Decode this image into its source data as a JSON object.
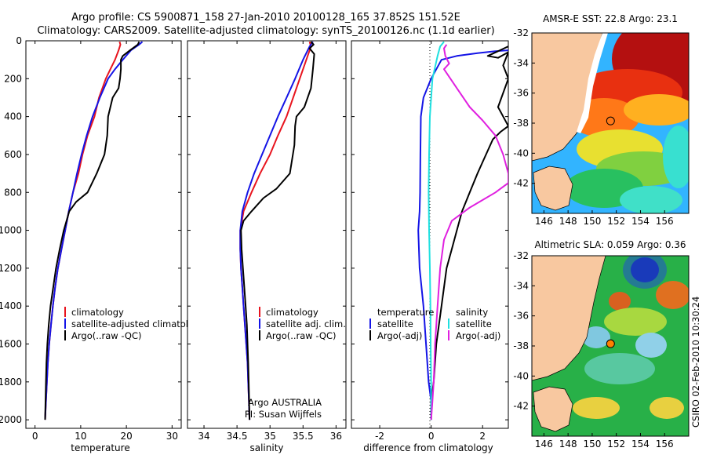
{
  "header": {
    "line1": "Argo profile: CS 5900871_158 27-Jan-2010 20100128_165 37.852S 151.52E",
    "line2": "Climatology: CARS2009. Satellite-adjusted climatology: synTS_20100126.nc (1.1d earlier)"
  },
  "side_label": "CSIRO 02-Feb-2010 10:30:24",
  "colors": {
    "climatology": "#e8141e",
    "satellite": "#1414e6",
    "argo": "#000000",
    "sal_satellite": "#20e0e0",
    "sal_argo": "#e020e0",
    "land": "#f8c8a0"
  },
  "chart_data": [
    {
      "type": "line",
      "xlabel": "temperature",
      "xlim": [
        -2,
        32
      ],
      "ylim": [
        2050,
        0
      ],
      "xticks": [
        0,
        10,
        20,
        30
      ],
      "yticks": [
        0,
        200,
        400,
        600,
        800,
        1000,
        1200,
        1400,
        1600,
        1800,
        2000
      ],
      "legend": {
        "placement": "bottom-right",
        "entries": [
          "climatology",
          "satellite-adjusted climatology",
          "Argo(..raw -QC)"
        ]
      },
      "series": [
        {
          "name": "climatology",
          "color": "#e8141e",
          "x": [
            18.5,
            18.7,
            18.3,
            17.5,
            16.5,
            15.5,
            14.0,
            13.0,
            11.5,
            10.4,
            9.5,
            8.3,
            7.4,
            6.6,
            5.8,
            5.0,
            4.4,
            3.9,
            3.5,
            3.1,
            2.8,
            2.6,
            2.4,
            2.2
          ],
          "y": [
            5,
            20,
            50,
            100,
            150,
            200,
            300,
            400,
            500,
            600,
            700,
            800,
            900,
            1000,
            1100,
            1200,
            1300,
            1400,
            1500,
            1600,
            1700,
            1800,
            1900,
            2000
          ]
        },
        {
          "name": "satellite-adjusted climatology",
          "color": "#1414e6",
          "x": [
            23.5,
            22.8,
            21.0,
            19.2,
            17.5,
            16.0,
            14.2,
            12.6,
            11.3,
            10.2,
            9.2,
            8.3,
            7.4,
            6.6,
            5.8,
            5.0,
            4.4,
            3.9,
            3.5,
            3.1,
            2.8,
            2.6,
            2.4,
            2.2
          ],
          "y": [
            5,
            20,
            50,
            100,
            150,
            200,
            300,
            400,
            500,
            600,
            700,
            800,
            900,
            1000,
            1100,
            1200,
            1300,
            1400,
            1500,
            1600,
            1700,
            1800,
            1900,
            2000
          ]
        },
        {
          "name": "Argo(..raw -QC)",
          "color": "#000000",
          "x": [
            22.8,
            22.5,
            20.8,
            19.2,
            18.8,
            18.8,
            18.6,
            18.3,
            17.0,
            16.5,
            16.0,
            15.8,
            15.2,
            13.5,
            11.5,
            9.0,
            7.5,
            6.3,
            5.4,
            4.6,
            4.0,
            3.4,
            3.0,
            2.7,
            2.5,
            2.4,
            2.2
          ],
          "y": [
            5,
            20,
            50,
            80,
            100,
            150,
            200,
            250,
            300,
            350,
            400,
            500,
            600,
            700,
            800,
            850,
            900,
            1000,
            1100,
            1200,
            1300,
            1400,
            1500,
            1600,
            1700,
            1800,
            2000
          ]
        }
      ]
    },
    {
      "type": "line",
      "xlabel": "salinity",
      "xlim": [
        33.75,
        36.15
      ],
      "ylim": [
        2050,
        0
      ],
      "xticks": [
        34,
        34.5,
        35,
        35.5,
        36
      ],
      "legend": {
        "placement": "bottom-right",
        "entries": [
          "climatology",
          "satellite adj. clim.",
          "Argo(..raw -QC)"
        ]
      },
      "annotation": [
        "Argo AUSTRALIA",
        "PI: Susan Wijffels"
      ],
      "series": [
        {
          "name": "climatology",
          "color": "#e8141e",
          "x": [
            35.6,
            35.62,
            35.55,
            35.45,
            35.35,
            35.25,
            35.12,
            35.0,
            34.85,
            34.72,
            34.6,
            34.55,
            34.55,
            34.56,
            34.58,
            34.6,
            34.62,
            34.64,
            34.66,
            34.67,
            34.68,
            34.69
          ],
          "y": [
            5,
            30,
            100,
            200,
            300,
            400,
            500,
            600,
            700,
            800,
            900,
            1000,
            1100,
            1200,
            1300,
            1400,
            1500,
            1600,
            1700,
            1800,
            1900,
            2000
          ]
        },
        {
          "name": "satellite adj. clim.",
          "color": "#1414e6",
          "x": [
            35.65,
            35.6,
            35.5,
            35.38,
            35.25,
            35.12,
            35.0,
            34.88,
            34.76,
            34.66,
            34.58,
            34.55,
            34.55,
            34.56,
            34.58,
            34.6,
            34.62,
            34.64,
            34.66,
            34.67,
            34.68,
            34.69
          ],
          "y": [
            5,
            30,
            100,
            200,
            300,
            400,
            500,
            600,
            700,
            800,
            900,
            1000,
            1100,
            1200,
            1300,
            1400,
            1500,
            1600,
            1700,
            1800,
            1900,
            2000
          ]
        },
        {
          "name": "Argo(..raw -QC)",
          "color": "#000000",
          "x": [
            35.62,
            35.66,
            35.6,
            35.67,
            35.65,
            35.62,
            35.52,
            35.4,
            35.38,
            35.37,
            35.3,
            35.1,
            34.9,
            34.72,
            34.6,
            34.56,
            34.57,
            34.59,
            34.61,
            34.63,
            34.65,
            34.67,
            34.68,
            34.69
          ],
          "y": [
            5,
            20,
            40,
            70,
            150,
            250,
            350,
            400,
            450,
            550,
            700,
            780,
            830,
            900,
            950,
            1000,
            1100,
            1200,
            1300,
            1400,
            1500,
            1700,
            1850,
            2000
          ]
        }
      ]
    },
    {
      "type": "line",
      "xlabel": "difference from climatology",
      "xlim": [
        -3.1,
        3.0
      ],
      "ylim": [
        2050,
        0
      ],
      "xticks": [
        -2,
        0,
        2
      ],
      "legend": {
        "placement": "bottom-right",
        "entries": [
          "temperature",
          "satellite",
          "Argo(-adj)",
          "salinity",
          "satellite",
          "Argo(-adj)"
        ]
      },
      "series": [
        {
          "name": "satellite",
          "color": "#1414e6",
          "x": [
            3.0,
            2.5,
            1.8,
            1.0,
            0.4,
            0.0,
            -0.3,
            -0.4,
            -0.42,
            -0.43,
            -0.45,
            -0.5,
            -0.45,
            -0.3,
            -0.2,
            -0.1,
            0.0,
            0.0
          ],
          "y": [
            50,
            55,
            65,
            80,
            100,
            200,
            300,
            400,
            600,
            800,
            900,
            1000,
            1200,
            1400,
            1600,
            1800,
            1900,
            2000
          ]
        },
        {
          "name": "Argo(-adj)",
          "color": "#000000",
          "x": [
            3.0,
            2.2,
            2.6,
            3.0,
            2.8,
            3.0,
            2.6,
            3.0,
            2.7,
            2.4,
            2.0,
            1.8,
            1.5,
            1.2,
            1.0,
            0.8,
            0.6,
            0.4,
            0.2,
            0.1,
            0.0,
            0.0
          ],
          "y": [
            30,
            80,
            90,
            60,
            130,
            200,
            350,
            450,
            480,
            520,
            640,
            700,
            800,
            900,
            1000,
            1100,
            1200,
            1400,
            1600,
            1800,
            1900,
            2000
          ]
        },
        {
          "name": "satellite",
          "color": "#20e0e0",
          "x": [
            0.5,
            0.35,
            0.25,
            0.05,
            -0.05,
            -0.08,
            -0.1,
            -0.08,
            -0.05,
            -0.03,
            -0.02,
            0.0,
            0.0
          ],
          "y": [
            5,
            30,
            80,
            200,
            400,
            600,
            800,
            1000,
            1200,
            1400,
            1600,
            1800,
            2000
          ]
        },
        {
          "name": "Argo(-adj)",
          "color": "#e020e0",
          "x": [
            0.6,
            0.5,
            0.55,
            0.7,
            0.5,
            1.0,
            1.5,
            2.0,
            2.5,
            2.8,
            3.0,
            3.0,
            2.5,
            1.5,
            0.8,
            0.5,
            0.35,
            0.25,
            0.15,
            0.1,
            0.05,
            0.0
          ],
          "y": [
            20,
            40,
            80,
            120,
            150,
            250,
            350,
            420,
            500,
            600,
            700,
            750,
            800,
            880,
            950,
            1050,
            1200,
            1400,
            1600,
            1800,
            1900,
            2000
          ]
        }
      ]
    },
    {
      "type": "heatmap",
      "title": "AMSR-E SST: 22.8 Argo: 23.1",
      "xlim": [
        145,
        158
      ],
      "ylim": [
        -44,
        -32
      ],
      "xticks": [
        146,
        148,
        150,
        152,
        154,
        156
      ],
      "yticks": [
        -32,
        -34,
        -36,
        -38,
        -40,
        -42
      ],
      "marker": {
        "lon": 151.52,
        "lat": -37.852
      }
    },
    {
      "type": "heatmap",
      "title": "Altimetric SLA: 0.059 Argo: 0.36",
      "xlim": [
        145,
        158
      ],
      "ylim": [
        -44,
        -32
      ],
      "xticks": [
        146,
        148,
        150,
        152,
        154,
        156
      ],
      "yticks": [
        -32,
        -34,
        -36,
        -38,
        -40,
        -42
      ],
      "marker": {
        "lon": 151.52,
        "lat": -37.852
      }
    }
  ]
}
